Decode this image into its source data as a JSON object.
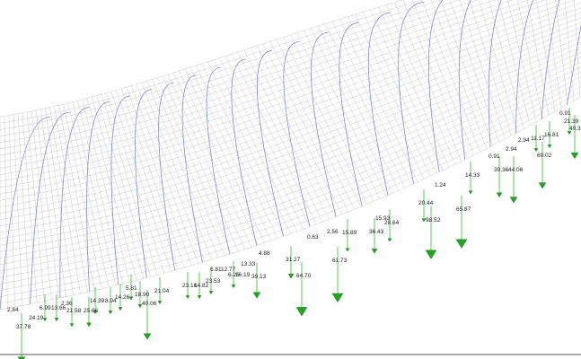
{
  "labels": [
    "2.84",
    "37.78",
    "24.19",
    "6.99",
    "13.66",
    "2.36",
    "21.58",
    "25.66",
    "14.39",
    "8.94",
    "14.26",
    "5.81",
    "18.90",
    "40.06",
    "21.04",
    "23.18",
    "14.82",
    "23.53",
    "6.81",
    "12.77",
    "6.26",
    "16.19",
    "13.33",
    "4.88",
    "39.13",
    "31.27",
    "64.70",
    "0.63",
    "61.73",
    "2.56",
    "15.89",
    "36.43",
    "15.93",
    "28.64",
    "20.44",
    "98.52",
    "1.24",
    "65.87",
    "14.33",
    "0.91",
    "30.36",
    "44.06",
    "2.94",
    "2.94",
    "11.17",
    "16.81",
    "60.02",
    "0.91",
    "21.39",
    "40.3"
  ]
}
